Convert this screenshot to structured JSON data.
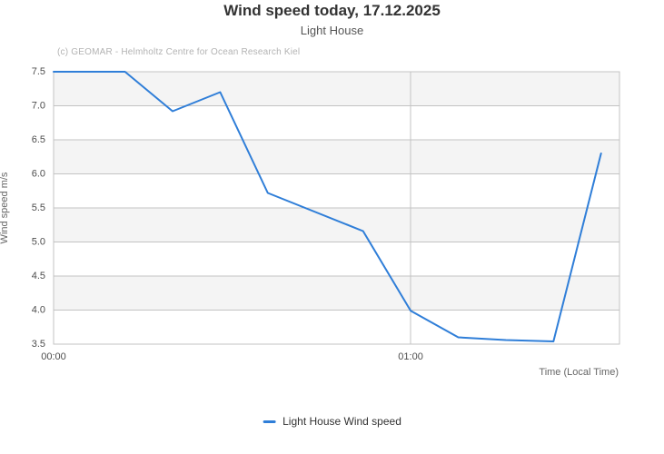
{
  "chart": {
    "title": "Wind speed today, 17.12.2025",
    "subtitle": "Light House",
    "credits": "(c) GEOMAR - Helmholtz Centre for Ocean Research Kiel",
    "legend": {
      "label": "Light House Wind speed"
    }
  },
  "chart_data": {
    "type": "line",
    "title": "Wind speed today, 17.12.2025",
    "subtitle": "Light House",
    "xlabel": "Time (Local Time)",
    "ylabel": "Wind speed  m/s",
    "x_axis_note": "t_min = minutes after 00:00 local time, estimated from plot",
    "series": [
      {
        "name": "Light House Wind speed",
        "color": "#2f7ed8",
        "points": [
          {
            "time": "00:00",
            "t_min": 0,
            "value": 7.5
          },
          {
            "time": "00:12",
            "t_min": 12,
            "value": 7.5
          },
          {
            "time": "00:20",
            "t_min": 20,
            "value": 6.92
          },
          {
            "time": "00:28",
            "t_min": 28,
            "value": 7.2
          },
          {
            "time": "00:36",
            "t_min": 36,
            "value": 5.72
          },
          {
            "time": "00:52",
            "t_min": 52,
            "value": 5.16
          },
          {
            "time": "01:00",
            "t_min": 60,
            "value": 3.99
          },
          {
            "time": "01:08",
            "t_min": 68,
            "value": 3.6
          },
          {
            "time": "01:16",
            "t_min": 76,
            "value": 3.56
          },
          {
            "time": "01:24",
            "t_min": 84,
            "value": 3.54
          },
          {
            "time": "01:32",
            "t_min": 92,
            "value": 6.3
          }
        ]
      }
    ],
    "xticks": [
      {
        "t_min": 0,
        "label": "00:00"
      },
      {
        "t_min": 60,
        "label": "01:00"
      }
    ],
    "yticks": [
      3.5,
      4.0,
      4.5,
      5.0,
      5.5,
      6.0,
      6.5,
      7.0,
      7.5
    ],
    "ylim": [
      3.5,
      7.5
    ],
    "xlim_minutes": [
      0,
      95.1
    ],
    "grid": true,
    "alternating_bands": "light gray bands between 7.5-7.0, 6.5-6.0, 5.5-5.0, 4.5-4.0",
    "legend_position": "bottom-center",
    "colors": {
      "line": "#2f7ed8",
      "band": "#f4f4f4",
      "gridline": "#c3c3c3",
      "plot_border": "#c3c3c3",
      "title": "#333333",
      "subtitle": "#555555",
      "credits": "#b3b3b3",
      "tick_label": "#4d4d4d",
      "axis_title": "#666666"
    }
  }
}
